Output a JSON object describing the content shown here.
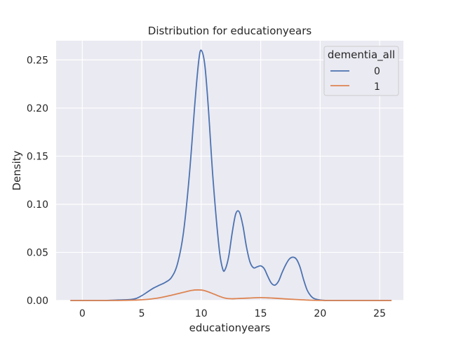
{
  "chart_data": {
    "type": "line",
    "title": "Distribution for educationyears",
    "xlabel": "educationyears",
    "ylabel": "Density",
    "xlim": [
      -2.2,
      27.0
    ],
    "ylim": [
      0,
      0.27
    ],
    "xticks": [
      0,
      5,
      10,
      15,
      20,
      25
    ],
    "yticks": [
      0.0,
      0.05,
      0.1,
      0.15,
      0.2,
      0.25
    ],
    "ytick_labels": [
      "0.00",
      "0.05",
      "0.10",
      "0.15",
      "0.20",
      "0.25"
    ],
    "grid": true,
    "legend": {
      "title": "dementia_all",
      "placement": "top-right"
    },
    "series": [
      {
        "name": "0",
        "color": "#4c72b0",
        "x": [
          -1,
          0,
          1,
          2,
          3,
          4,
          4.5,
          5,
          5.5,
          6,
          6.5,
          7,
          7.5,
          8,
          8.5,
          9,
          9.5,
          9.8,
          10,
          10.3,
          10.6,
          11,
          11.5,
          11.8,
          12,
          12.3,
          12.6,
          12.9,
          13.2,
          13.5,
          13.8,
          14.1,
          14.4,
          14.7,
          15,
          15.3,
          15.6,
          15.9,
          16.2,
          16.5,
          16.8,
          17.1,
          17.4,
          17.7,
          18,
          18.3,
          18.6,
          18.9,
          19.2,
          19.5,
          20,
          20.5,
          21,
          22,
          23,
          24,
          25,
          26
        ],
        "y": [
          0.0,
          0.0,
          0.0,
          0.0,
          0.0005,
          0.001,
          0.002,
          0.005,
          0.009,
          0.013,
          0.016,
          0.019,
          0.024,
          0.038,
          0.07,
          0.13,
          0.21,
          0.25,
          0.26,
          0.245,
          0.2,
          0.125,
          0.055,
          0.033,
          0.032,
          0.045,
          0.07,
          0.09,
          0.092,
          0.078,
          0.056,
          0.04,
          0.034,
          0.035,
          0.036,
          0.033,
          0.025,
          0.018,
          0.016,
          0.02,
          0.029,
          0.037,
          0.043,
          0.045,
          0.043,
          0.035,
          0.022,
          0.011,
          0.005,
          0.002,
          0.0005,
          0.0,
          0.0,
          0.0,
          0.0,
          0.0,
          0.0,
          0.0
        ]
      },
      {
        "name": "1",
        "color": "#dd8452",
        "x": [
          -1,
          3,
          4.5,
          5.5,
          6.5,
          7.5,
          8.5,
          9.2,
          9.7,
          10.2,
          10.8,
          11.5,
          12,
          12.5,
          13,
          14,
          15,
          16,
          17,
          18,
          19,
          20,
          22,
          26
        ],
        "y": [
          0.0,
          0.0,
          0.0004,
          0.0012,
          0.0028,
          0.0055,
          0.0085,
          0.0105,
          0.011,
          0.0105,
          0.008,
          0.0045,
          0.0025,
          0.0018,
          0.002,
          0.0025,
          0.003,
          0.0025,
          0.0017,
          0.001,
          0.0004,
          0.0001,
          0.0,
          0.0
        ]
      }
    ]
  }
}
